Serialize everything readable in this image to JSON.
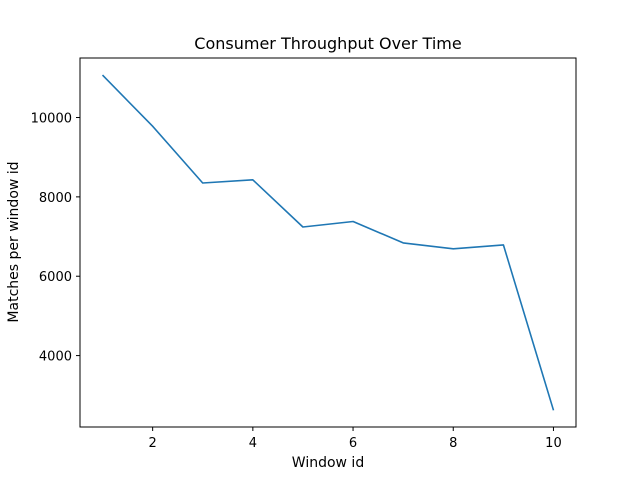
{
  "chart_data": {
    "type": "line",
    "title": "Consumer Throughput Over Time",
    "xlabel": "Window id",
    "ylabel": "Matches per window id",
    "x": [
      1,
      2,
      3,
      4,
      5,
      6,
      7,
      8,
      9,
      10
    ],
    "series": [
      {
        "values": [
          11070,
          9780,
          8350,
          8430,
          7240,
          7380,
          6840,
          6690,
          6790,
          2620
        ],
        "color": "#1f77b4"
      }
    ],
    "xlim": [
      0.55,
      10.45
    ],
    "ylim": [
      2200,
      11500
    ],
    "xticks": [
      2,
      4,
      6,
      8,
      10
    ],
    "yticks": [
      4000,
      6000,
      8000,
      10000
    ],
    "grid": false,
    "legend": "none"
  }
}
